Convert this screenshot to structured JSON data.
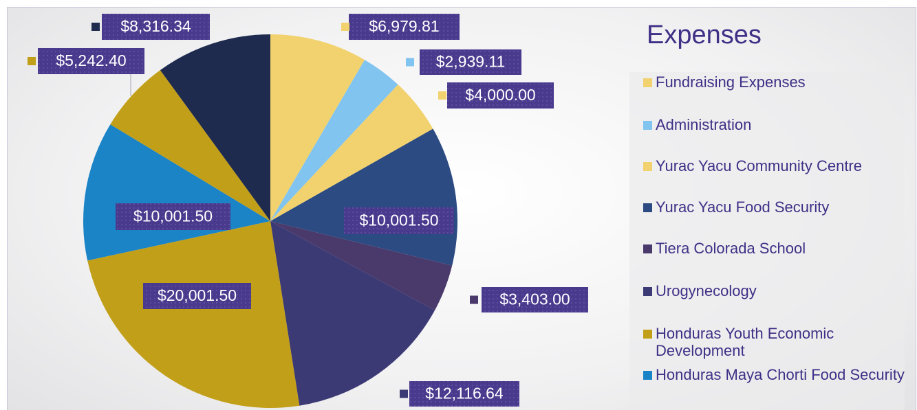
{
  "chart_data": {
    "type": "pie",
    "title": "Expenses",
    "categories": [
      "Fundraising Expenses",
      "Administration",
      "Yurac Yacu Community Centre",
      "Yurac Yacu Food Security",
      "Tiera Colorada School",
      "Urogynecology",
      "Honduras Youth Economic Development",
      "Honduras Maya Chorti Food Security",
      null,
      null
    ],
    "values": [
      6979.81,
      2939.11,
      4000.0,
      10001.5,
      3403.0,
      12116.64,
      20001.5,
      10001.5,
      5242.4,
      8316.34
    ],
    "value_labels": [
      "$6,979.81",
      "$2,939.11",
      "$4,000.00",
      "$10,001.50",
      "$3,403.00",
      "$12,116.64",
      "$20,001.50",
      "$10,001.50",
      "$5,242.40",
      "$8,316.34"
    ],
    "colors": [
      "#f2d26e",
      "#80c4ef",
      "#f2d26e",
      "#2b4b82",
      "#4a3a6c",
      "#3c3a74",
      "#c29f18",
      "#1a84c7",
      "#c29f18",
      "#1e2b4e"
    ],
    "legend": "right"
  }
}
